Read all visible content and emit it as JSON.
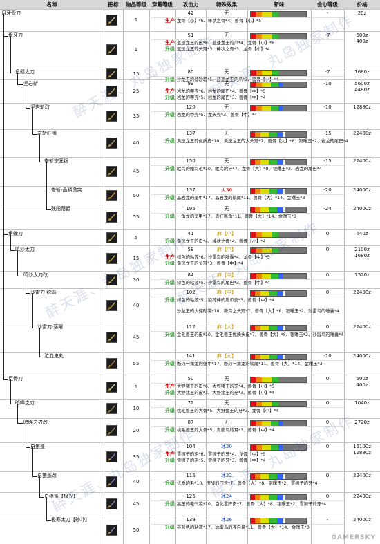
{
  "headers": [
    "名称",
    "图标",
    "物品等级",
    "穿戴等级",
    "攻击力",
    "特殊效果",
    "斩味",
    "会心等级",
    "价格"
  ],
  "weapons": [
    {
      "name": "月牙骨刀",
      "icon": "bone-blade-icon",
      "item_level": "1",
      "attack": "42",
      "effect": "无",
      "crit": "-",
      "tag": "生产",
      "materials": "龙骨【小】*6、棒状之骨*4、兽骨【小】*5",
      "price": "20z"
    },
    {
      "name": "骨牙刀",
      "icon": "bone-blade-icon",
      "item_level": "1",
      "attack": "51",
      "effect": "无",
      "crit": "-7",
      "tag": "生产",
      "materials": "蓝速龙王的皮*6、蓝速龙王的爪*4、龙骨【小】*6",
      "tag2": "升级",
      "materials2": "蓝速龙王的头冠*3、棒状之骨*3、龙骨【小】*4",
      "price": "500z",
      "price2": "400z"
    },
    {
      "name": "鱼鳍太刀",
      "icon": "fin-blade-icon",
      "item_level": "15",
      "attack": "80",
      "effect": "无",
      "crit": "-7",
      "tag": "升级",
      "materials": "沙龙王的储砂袋*5、蓝速龙王的爪*3、兽骨【小】*4",
      "price": "1680z"
    },
    {
      "name": "坚岩斩",
      "icon": "rock-blade-icon",
      "item_level": "25",
      "attack": "99",
      "effect": "无",
      "crit": "-10",
      "tag": "生产",
      "materials": "岩龙的甲壳*6、岩龙的尾巴*4、兽骨【中】*5",
      "tag2": "升级",
      "materials2": "岩龙的甲壳*5、岩龙的尾巴*3、兽骨【中】*4",
      "price": "5600z",
      "price2": "4480z"
    },
    {
      "name": "坚岩斩改",
      "icon": "rock-blade-icon",
      "item_level": "35",
      "attack": "120",
      "effect": "无",
      "crit": "-10",
      "tag": "升级",
      "materials": "岩龙的甲壳*5、龙头壳*3、兽骨【中】*4",
      "price": "12880z"
    },
    {
      "name": "岩斩匠银",
      "icon": "rock-blade-icon",
      "item_level": "40",
      "attack": "137",
      "effect": "无",
      "crit": "-15",
      "tag": "升级",
      "materials": "黄速龙王的优质皮*10、黄速龙王的大头冠*7、兽骨【大】*8、银曙玉*2、岩龙的尾巴*4",
      "price": "22400z"
    },
    {
      "name": "岩斩宗匠银",
      "icon": "rock-blade-icon",
      "item_level": "45",
      "attack": "150",
      "effect": "无",
      "crit": "-15",
      "tag": "升级",
      "materials": "眠鸟的鳍羽毛*10、眠鸟的牙*7、龙骨【大】*8、银曙玉*2、岩龙的尾巴*4",
      "price": "22400z"
    },
    {
      "name": "岩斩-晶鳞激突",
      "icon": "crystal-blade-icon",
      "item_level": "50",
      "attack": "137",
      "effect": "火36",
      "effect_color": "#d40000",
      "crit": "-20",
      "tag": "升级",
      "materials": "晶岩龙的坚甲*17、晶岩龙的鞘尾*11、兽骨【大】*14、金曙玉*3",
      "price": "24000z"
    },
    {
      "name": "残阳蒴爵",
      "icon": "crystal-blade-icon",
      "item_level": "55",
      "attack": "195",
      "effect": "无",
      "crit": "-24",
      "tag": "升级",
      "materials": "一角龙的坚甲*17、真红断角*11、兽骨【大】*14、金曙玉*3",
      "price": "24000z"
    },
    {
      "name": "角蝰刀",
      "icon": "horn-blade-icon",
      "item_level": "5",
      "attack": "41",
      "effect": "麻【小】",
      "effect_color": "#c89600",
      "crit": "0",
      "tag": "升级",
      "materials": "黄速龙王的皮*4、棒状之骨*4、兽骨【小】*4",
      "price": "640z"
    },
    {
      "name": "鸣沙太刀",
      "icon": "sand-blade-icon",
      "item_level": "15",
      "attack": "58",
      "effect": "麻【中】",
      "effect_color": "#c89600",
      "crit": "0",
      "tag": "生产",
      "materials": "绿色的粘液*6、沙雷鸟的唾囊*4、龙骨【中】*5",
      "tag2": "升级",
      "materials2": "黄速龙王的头冠*3、兽骨【中】*4",
      "price": "2100z",
      "price2": "1680z"
    },
    {
      "name": "鸣沙太刀改",
      "icon": "sand-blade-icon",
      "item_level": "30",
      "attack": "84",
      "effect": "麻【中】",
      "effect_color": "#c89600",
      "crit": "0",
      "tag": "升级",
      "materials": "绿色的粘液*5、沙雷鸟的尾巴*3、兽骨【中】*4",
      "price": "7520z"
    },
    {
      "name": "沙雷刀·锐鸣",
      "icon": "sand-blade-icon",
      "item_level": "40",
      "attack": "102",
      "effect": "麻【中】",
      "effect_color": "#c89600",
      "crit": "0",
      "tag": "升级",
      "materials": "绿色的粘液*5、狼狩蜂的盾爪壳*3、兽骨【中】*4",
      "materials_b": "沙龙王的大储砂袋*10、新月之头冠*7、兽骨【大】*8、银曙玉*2、沙雷鸟的唾囊*4",
      "price": "22400z"
    },
    {
      "name": "沙雷刀·落曜",
      "icon": "sand-blade-icon",
      "item_level": "45",
      "attack": "112",
      "effect": "麻【大】",
      "effect_color": "#c89600",
      "crit": "0",
      "tag": "升级",
      "materials": "金毛兽王的皮*10、金毛兽王优质头皮*7、兽骨【大】*8、银曙玉*2、沙雷鸟的唾囊*4",
      "price": "22400z"
    },
    {
      "name": "泣血鬼丸",
      "icon": "demon-blade-icon",
      "item_level": "55",
      "attack": "141",
      "effect": "麻【大】",
      "effect_color": "#c89600",
      "crit": "-10",
      "tag": "升级",
      "materials": "断刃一角龙的坚甲*17、断刃一角龙的鞘尾*11、兽骨【大】*14、金曙玉*3",
      "price": "24000z"
    },
    {
      "name": "巨骨刀",
      "icon": "great-bone-icon",
      "item_level": "1",
      "attack": "50",
      "effect": "无",
      "crit": "0",
      "tag": "生产",
      "materials": "大野猪王的皮*6、大野猪王的牙*4、兽骨【小】*5",
      "tag2": "升级",
      "materials2": "大野猪王的皮*3、大野猪王的牙*3、兽骨【小】*4",
      "price": "500z",
      "price2": "400z"
    },
    {
      "name": "暗晔之刃",
      "icon": "dark-blade-icon",
      "item_level": "10",
      "attack": "72",
      "effect": "无",
      "crit": "0",
      "tag": "升级",
      "materials": "桃毛兽王的大骨*5、大野猪王的牙*3、龙骨【小】*4",
      "price": "1040z"
    },
    {
      "name": "暗晔之刃改",
      "icon": "dark-blade-icon",
      "item_level": "20",
      "attack": "87",
      "effect": "无",
      "crit": "0",
      "tag": "升级",
      "materials": "桃毛兽王的大骨*5、青熊鸟的耳*3、兽骨【中】*4",
      "price": "2720z"
    },
    {
      "name": "白狼蓬",
      "icon": "ice-blade-icon",
      "item_level": "35",
      "attack": "104",
      "effect": "冰20",
      "effect_color": "#1a4fc0",
      "crit": "0",
      "tag": "生产",
      "materials": "雪狮子的毛*6、雪狮子的牙*4、龙骨【中】*5",
      "tag2": "升级",
      "materials2": "雪狮子的毛*5、雪狮子的牙*3、兽骨【中】*4",
      "price": "16100z",
      "price2": "12880z"
    },
    {
      "name": "白狼蓬改",
      "icon": "ice-blade-icon",
      "item_level": "40",
      "attack": "115",
      "effect": "冰22",
      "effect_color": "#1a4fc0",
      "crit": "0",
      "tag": "升级",
      "materials": "优质的毛*10、历战的门牙*7、兽骨【大】*8、银曙玉*2、雪狮子的牙*4",
      "price": "22400z"
    },
    {
      "name": "白狼蓬【极光】",
      "icon": "ice-blade-icon",
      "item_level": "45",
      "attack": "126",
      "effect": "冰24",
      "effect_color": "#1a4fc0",
      "crit": "0",
      "tag": "升级",
      "materials": "高压的电气袋*10、白化雷阵肉*7、兽骨【大】*8、银曙玉*2、雪狮子的牙*4",
      "price": "22400z"
    },
    {
      "name": "极寒太刀【砂冲】",
      "icon": "ice-blade-icon",
      "item_level": "50",
      "attack": "139",
      "effect": "冰26",
      "effect_color": "#1a4fc0",
      "crit": "-",
      "tag": "升级",
      "materials": "亮蓝色的粘液*17、冰雷鸟的苍白鼻*11、兽骨【大】*14、金曙玉*3",
      "price": "24000z"
    }
  ],
  "tag_colors": {
    "生产": "#d00000",
    "升级": "#2a9a2a"
  },
  "watermark": "醉天涯、丸岛独家制作",
  "logo": "GAMERSKY"
}
